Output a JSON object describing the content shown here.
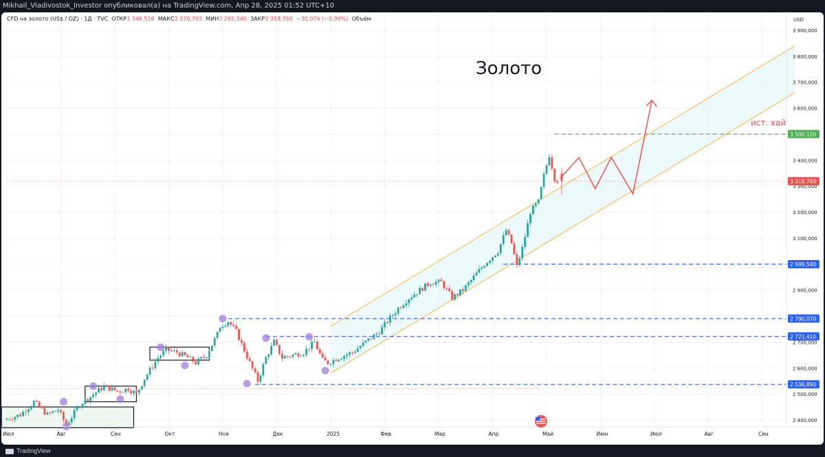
{
  "window": {
    "attribution": "Mikhail_Vladivostok_Investor опубликовал(а) на TradingView.com, Апр 28, 2025 01:52 UTC+10"
  },
  "legend": {
    "symbol": "CFD на золото (US$ / OZ) · 1Д · TVC",
    "open_label": "ОТКР",
    "open_value": "3 349,516",
    "high_label": "МАКС",
    "high_value": "3 370,793",
    "low_label": "МИН",
    "low_value": "3 265,340",
    "close_label": "ЗАКР",
    "close_value": "3 318,760",
    "change": "−30,076 (−0,90%)",
    "volume_label": "Объём"
  },
  "annotations": {
    "title": "Золото",
    "ath_label": "ист. хай"
  },
  "footer": {
    "brand": "TradingView"
  },
  "colors": {
    "up": "#26a69a",
    "down": "#ef5350",
    "channel": "#f6bd60",
    "channel_fill": "#e0f7fa",
    "support_lines": "#2962ff",
    "ath_line": "#4caf50",
    "forecast_path": "#ef5350",
    "pivot_markers": "#9c7fd8"
  },
  "chart_data": {
    "type": "candlestick",
    "currency": "USD",
    "x_labels": [
      "Июл",
      "Авг",
      "Сен",
      "Окт",
      "Ноя",
      "Дек",
      "2025",
      "Фев",
      "Мар",
      "Апр",
      "Май",
      "Июн",
      "Июл",
      "Авг",
      "Сен"
    ],
    "x_months": [
      0,
      1,
      2,
      3,
      4,
      5,
      6,
      7,
      8,
      9,
      10,
      11,
      12,
      13,
      14
    ],
    "y_ticks": [
      2400,
      2500,
      2600,
      2700,
      2800,
      2900,
      3000,
      3100,
      3200,
      3300,
      3400,
      3500,
      3600,
      3700,
      3800,
      3900
    ],
    "y_tick_labels": [
      "2 400,000",
      "2 500,000",
      "2 600,000",
      "2 700,000",
      "2 800,000",
      "2 900,000",
      "3 000,000",
      "3 100,000",
      "3 200,000",
      "3 300,000",
      "3 400,000",
      "3 500,000",
      "3 600,000",
      "3 700,000",
      "3 800,000",
      "3 900,000"
    ],
    "ylim": [
      2370,
      3930
    ],
    "price_path": [
      [
        0.0,
        2400
      ],
      [
        0.3,
        2420
      ],
      [
        0.55,
        2470
      ],
      [
        0.8,
        2420
      ],
      [
        1.0,
        2440
      ],
      [
        1.15,
        2380
      ],
      [
        1.4,
        2460
      ],
      [
        1.6,
        2490
      ],
      [
        1.85,
        2530
      ],
      [
        2.1,
        2510
      ],
      [
        2.3,
        2520
      ],
      [
        2.45,
        2500
      ],
      [
        2.6,
        2560
      ],
      [
        2.85,
        2640
      ],
      [
        3.0,
        2670
      ],
      [
        3.2,
        2660
      ],
      [
        3.4,
        2640
      ],
      [
        3.55,
        2620
      ],
      [
        3.75,
        2650
      ],
      [
        3.95,
        2730
      ],
      [
        4.0,
        2760
      ],
      [
        4.15,
        2780
      ],
      [
        4.3,
        2740
      ],
      [
        4.55,
        2620
      ],
      [
        4.7,
        2550
      ],
      [
        4.85,
        2640
      ],
      [
        5.0,
        2700
      ],
      [
        5.15,
        2640
      ],
      [
        5.35,
        2650
      ],
      [
        5.55,
        2660
      ],
      [
        5.75,
        2700
      ],
      [
        5.9,
        2630
      ],
      [
        6.0,
        2620
      ],
      [
        6.2,
        2640
      ],
      [
        6.45,
        2660
      ],
      [
        6.7,
        2700
      ],
      [
        6.95,
        2740
      ],
      [
        7.1,
        2780
      ],
      [
        7.3,
        2830
      ],
      [
        7.5,
        2870
      ],
      [
        7.7,
        2900
      ],
      [
        7.9,
        2930
      ],
      [
        8.1,
        2930
      ],
      [
        8.3,
        2870
      ],
      [
        8.5,
        2900
      ],
      [
        8.7,
        2950
      ],
      [
        8.9,
        3000
      ],
      [
        9.0,
        3020
      ],
      [
        9.15,
        3050
      ],
      [
        9.3,
        3130
      ],
      [
        9.4,
        3080
      ],
      [
        9.5,
        2990
      ],
      [
        9.6,
        3060
      ],
      [
        9.75,
        3200
      ],
      [
        9.9,
        3240
      ],
      [
        10.0,
        3340
      ],
      [
        10.1,
        3420
      ],
      [
        10.2,
        3330
      ],
      [
        10.28,
        3318
      ]
    ],
    "last_candle": {
      "open": 3349.516,
      "high": 3370.793,
      "low": 3265.34,
      "close": 3318.76
    },
    "horizontal_levels": [
      {
        "value": 3500.12,
        "label": "3 500,120",
        "color": "#4caf50"
      },
      {
        "value": 3318.76,
        "label": "3 318,760",
        "color": "#ef5350"
      },
      {
        "value": 2999.54,
        "label": "2 999,540",
        "color": "#2962ff"
      },
      {
        "value": 2790.07,
        "label": "2 790,070",
        "color": "#2962ff"
      },
      {
        "value": 2721.41,
        "label": "2 721,410",
        "color": "#2962ff"
      },
      {
        "value": 2536.89,
        "label": "2 536,890",
        "color": "#2962ff"
      }
    ],
    "channel": {
      "lower_start": [
        6.0,
        2580
      ],
      "lower_end": [
        14.6,
        3660
      ],
      "upper_start": [
        6.0,
        2760
      ],
      "upper_end": [
        14.6,
        3840
      ]
    },
    "forecast_path": [
      [
        10.25,
        3330
      ],
      [
        10.6,
        3410
      ],
      [
        10.9,
        3290
      ],
      [
        11.2,
        3410
      ],
      [
        11.6,
        3270
      ],
      [
        11.95,
        3630
      ]
    ],
    "consolidation_boxes": [
      {
        "x0": -0.1,
        "x1": 2.35,
        "y0": 2370,
        "y1": 2450
      },
      {
        "x0": 1.45,
        "x1": 2.4,
        "y0": 2470,
        "y1": 2530
      },
      {
        "x0": 2.65,
        "x1": 3.75,
        "y0": 2630,
        "y1": 2680
      }
    ],
    "pivot_points": [
      [
        1.05,
        2470
      ],
      [
        1.1,
        2375
      ],
      [
        1.6,
        2530
      ],
      [
        2.1,
        2480
      ],
      [
        2.85,
        2680
      ],
      [
        3.3,
        2610
      ],
      [
        4.0,
        2790
      ],
      [
        4.45,
        2540
      ],
      [
        4.8,
        2715
      ],
      [
        5.6,
        2720
      ],
      [
        5.9,
        2590
      ]
    ]
  }
}
